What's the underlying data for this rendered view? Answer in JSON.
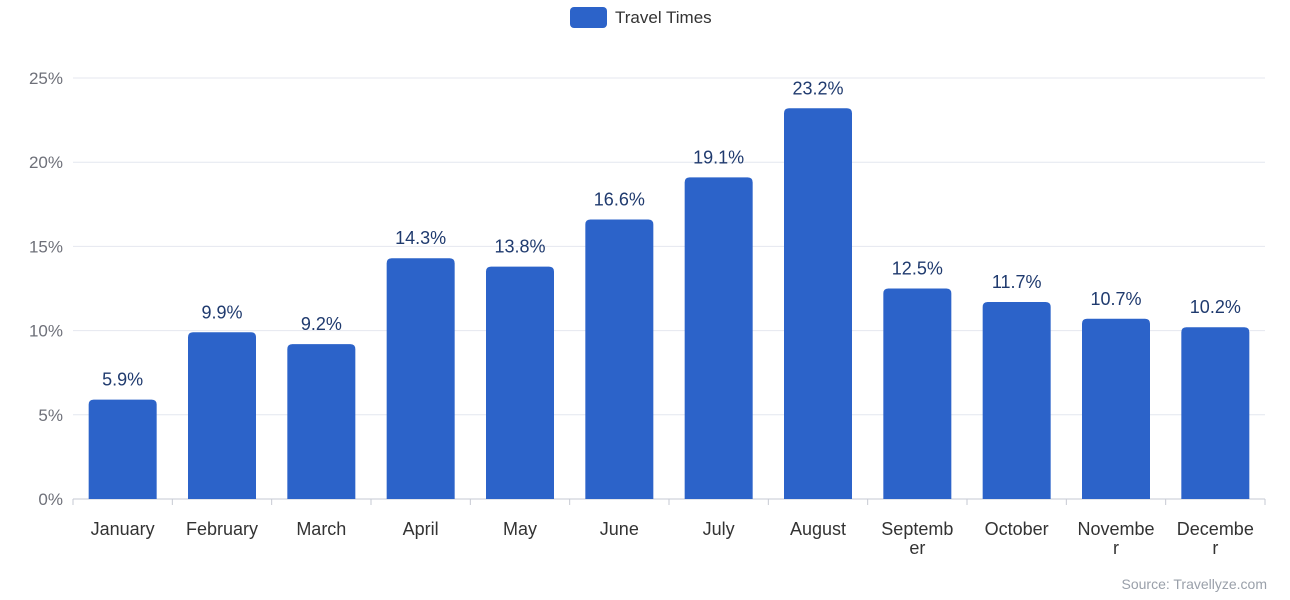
{
  "legend": {
    "label": "Travel Times"
  },
  "source": "Source: Travellyze.com",
  "colors": {
    "bar": "#2c63c9",
    "grid": "#e4e7ef",
    "axis": "#c6cad3",
    "data_label": "#1f3a6e"
  },
  "chart_data": {
    "type": "bar",
    "categories": [
      "January",
      "February",
      "March",
      "April",
      "May",
      "June",
      "July",
      "August",
      "September",
      "October",
      "November",
      "December"
    ],
    "tick_labels": [
      [
        "January"
      ],
      [
        "February"
      ],
      [
        "March"
      ],
      [
        "April"
      ],
      [
        "May"
      ],
      [
        "June"
      ],
      [
        "July"
      ],
      [
        "August"
      ],
      [
        "Septemb",
        "er"
      ],
      [
        "October"
      ],
      [
        "Novembe",
        "r"
      ],
      [
        "Decembe",
        "r"
      ]
    ],
    "series": [
      {
        "name": "Travel Times",
        "values": [
          5.9,
          9.9,
          9.2,
          14.3,
          13.8,
          16.6,
          19.1,
          23.2,
          12.5,
          11.7,
          10.7,
          10.2
        ]
      }
    ],
    "data_labels": [
      "5.9%",
      "9.9%",
      "9.2%",
      "14.3%",
      "13.8%",
      "16.6%",
      "19.1%",
      "23.2%",
      "12.5%",
      "11.7%",
      "10.7%",
      "10.2%"
    ],
    "y_ticks": [
      0,
      5,
      10,
      15,
      20,
      25
    ],
    "y_tick_labels": [
      "0%",
      "5%",
      "10%",
      "15%",
      "20%",
      "25%"
    ],
    "ylim": [
      0,
      25
    ],
    "grid": true,
    "legend_position": "top-center"
  }
}
